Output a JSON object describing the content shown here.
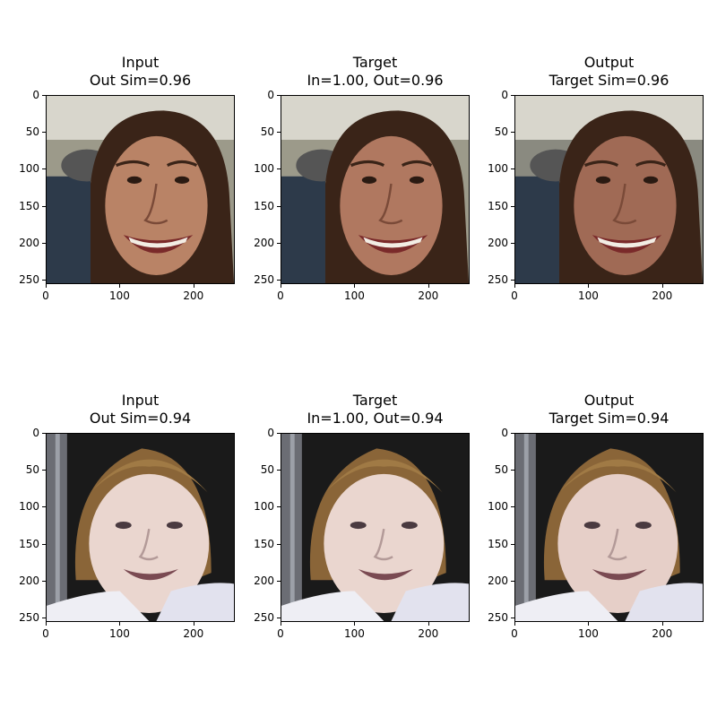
{
  "figure": {
    "panels": [
      {
        "title_line1": "Input",
        "title_line2": "Out Sim=0.96",
        "image": "smiling-woman-dark-hair-crowd",
        "variant": "input"
      },
      {
        "title_line1": "Target",
        "title_line2": "In=1.00, Out=0.96",
        "image": "smiling-woman-dark-hair-crowd",
        "variant": "target"
      },
      {
        "title_line1": "Output",
        "title_line2": "Target Sim=0.96",
        "image": "smiling-woman-dark-hair-generated",
        "variant": "output"
      },
      {
        "title_line1": "Input",
        "title_line2": "Out Sim=0.94",
        "image": "smiling-blonde-woman-white-shirt",
        "variant": "input"
      },
      {
        "title_line1": "Target",
        "title_line2": "In=1.00, Out=0.94",
        "image": "smiling-blonde-woman-white-shirt",
        "variant": "target"
      },
      {
        "title_line1": "Output",
        "title_line2": "Target Sim=0.94",
        "image": "smiling-blonde-woman-generated",
        "variant": "output"
      }
    ],
    "y_ticks": [
      "0",
      "50",
      "100",
      "150",
      "200",
      "250"
    ],
    "x_ticks": [
      "0",
      "100",
      "200"
    ],
    "image_size": 256
  }
}
